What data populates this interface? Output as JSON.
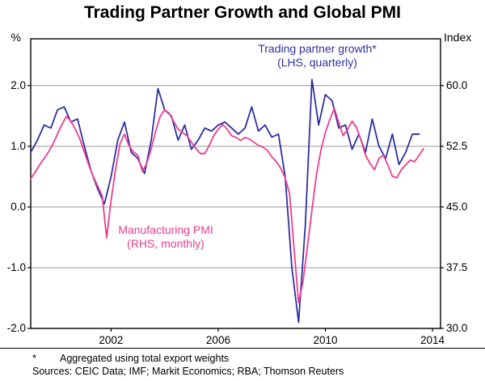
{
  "title": "Trading Partner Growth and Global PMI",
  "left_axis": {
    "unit": "%",
    "ticks": [
      2.0,
      1.0,
      0.0,
      -1.0,
      -2.0
    ],
    "tick_labels": [
      "2.0",
      "1.0",
      "0.0",
      "-1.0",
      "-2.0"
    ]
  },
  "right_axis": {
    "unit": "Index",
    "tick_labels": [
      "60.0",
      "52.5",
      "45.0",
      "37.5",
      "30.0"
    ]
  },
  "x_axis": {
    "tick_years": [
      2002,
      2006,
      2010,
      2014
    ]
  },
  "annotations": {
    "blue_label_line1": "Trading partner growth*",
    "blue_label_line2": "(LHS, quarterly)",
    "pink_label_line1": "Manufacturing PMI",
    "pink_label_line2": "(RHS, monthly)"
  },
  "footnote": {
    "marker": "*",
    "text": "Aggregated using total export weights"
  },
  "sources": "Sources: CEIC Data; IMF; Markit Economics; RBA; Thomson Reuters",
  "colors": {
    "blue": "#2F2FA2",
    "pink": "#EE3D8F",
    "grid": "#969696",
    "frame": "#000000"
  },
  "chart_data": {
    "type": "line",
    "title": "Trading Partner Growth and Global PMI",
    "xlim": [
      1999.0,
      2014.3
    ],
    "left_ylim": [
      -2.0,
      2.77
    ],
    "right_ylim": [
      30.0,
      65.775
    ],
    "left_axis_label": "% (quarterly growth)",
    "right_axis_label": "Index",
    "grid": "horizontal gridlines at left-axis ticks",
    "legend_position": "inline colored annotations",
    "series": [
      {
        "name": "Trading partner growth (LHS, quarterly)",
        "axis": "left",
        "color_key": "blue",
        "x_start": 1999.0,
        "x_step": 0.25,
        "values": [
          0.9,
          1.1,
          1.35,
          1.3,
          1.6,
          1.65,
          1.4,
          1.45,
          1.0,
          0.6,
          0.3,
          0.05,
          0.5,
          1.1,
          1.4,
          0.9,
          0.8,
          0.55,
          1.1,
          1.95,
          1.6,
          1.5,
          1.1,
          1.35,
          0.95,
          1.1,
          1.3,
          1.25,
          1.35,
          1.4,
          1.3,
          1.2,
          1.3,
          1.65,
          1.25,
          1.35,
          1.15,
          1.2,
          0.5,
          -1.0,
          -1.9,
          -0.3,
          2.1,
          1.35,
          1.85,
          1.75,
          1.3,
          1.35,
          0.95,
          1.2,
          0.9,
          1.45,
          1.0,
          0.8,
          1.2,
          0.7,
          0.9,
          1.2,
          1.2
        ]
      },
      {
        "name": "Manufacturing PMI (RHS, monthly)",
        "axis": "right",
        "color_key": "pink",
        "x_start": 1999.0,
        "x_step": 0.1666667,
        "values": [
          48.5,
          49.3,
          50.2,
          51.0,
          51.8,
          52.8,
          54.0,
          55.2,
          56.2,
          55.6,
          54.6,
          53.4,
          51.8,
          50.2,
          48.8,
          47.6,
          46.4,
          41.2,
          45.8,
          49.6,
          52.8,
          54.0,
          52.6,
          51.8,
          51.4,
          49.4,
          50.4,
          52.2,
          54.4,
          56.2,
          57.0,
          56.6,
          55.6,
          54.6,
          54.2,
          53.8,
          53.0,
          52.2,
          51.6,
          51.6,
          52.6,
          53.8,
          54.6,
          55.2,
          54.6,
          53.8,
          53.6,
          53.2,
          53.6,
          53.4,
          53.0,
          52.6,
          52.4,
          52.0,
          51.2,
          50.6,
          49.8,
          48.6,
          46.6,
          39.8,
          33.2,
          35.8,
          40.2,
          44.6,
          49.0,
          52.0,
          54.2,
          55.8,
          57.2,
          55.4,
          53.8,
          54.6,
          55.6,
          54.8,
          53.2,
          51.4,
          50.4,
          49.6,
          51.0,
          51.4,
          50.2,
          48.8,
          48.6,
          49.6,
          50.2,
          50.8,
          50.6,
          51.4,
          52.2
        ]
      }
    ]
  }
}
